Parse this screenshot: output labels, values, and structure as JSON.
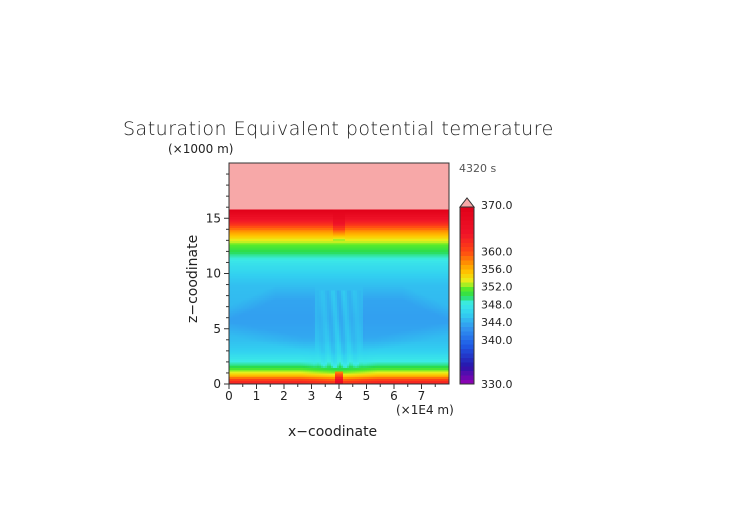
{
  "chart_data": {
    "type": "heatmap",
    "title": "Saturation Equivalent potential temerature",
    "time_label": "4320 s",
    "xlabel": "x−coodinate",
    "ylabel": "z−coodinate",
    "x_unit": "(×1E4 m)",
    "y_unit": "(×1000 m)",
    "xlim": [
      0,
      8
    ],
    "ylim": [
      0,
      20
    ],
    "x_ticks": [
      "0",
      "1",
      "2",
      "3",
      "4",
      "5",
      "6",
      "7"
    ],
    "y_ticks": [
      "0",
      "5",
      "10",
      "15"
    ],
    "colorbar": {
      "range": [
        330,
        370
      ],
      "levels": [
        330,
        331,
        332,
        333,
        334,
        335,
        336,
        337,
        338,
        339,
        340,
        341,
        342,
        343,
        344,
        345,
        346,
        347,
        348,
        349,
        350,
        351,
        352,
        353,
        354,
        355,
        356,
        357,
        358,
        359,
        360,
        361,
        362,
        363,
        364,
        365,
        366,
        367,
        368,
        369,
        370
      ],
      "tick_labels": [
        "330.0",
        "340.0",
        "344.0",
        "348.0",
        "352.0",
        "356.0",
        "360.0",
        "370.0"
      ],
      "over_color": "#f7a8a8"
    },
    "background_profile": [
      {
        "z": 0.0,
        "theta": 364
      },
      {
        "z": 0.3,
        "theta": 362
      },
      {
        "z": 0.7,
        "theta": 357
      },
      {
        "z": 1.1,
        "theta": 353
      },
      {
        "z": 1.6,
        "theta": 350
      },
      {
        "z": 2.2,
        "theta": 348
      },
      {
        "z": 3.0,
        "theta": 346
      },
      {
        "z": 4.0,
        "theta": 345
      },
      {
        "z": 6.0,
        "theta": 344.5
      },
      {
        "z": 9.0,
        "theta": 345
      },
      {
        "z": 10.0,
        "theta": 346
      },
      {
        "z": 11.0,
        "theta": 347.5
      },
      {
        "z": 11.8,
        "theta": 349.5
      },
      {
        "z": 12.6,
        "theta": 351.5
      },
      {
        "z": 13.2,
        "theta": 354
      },
      {
        "z": 13.8,
        "theta": 357
      },
      {
        "z": 14.3,
        "theta": 360
      },
      {
        "z": 14.7,
        "theta": 363
      },
      {
        "z": 15.2,
        "theta": 366
      },
      {
        "z": 15.7,
        "theta": 369
      },
      {
        "z": 16.0,
        "theta": 372
      },
      {
        "z": 20.0,
        "theta": 376
      }
    ]
  }
}
